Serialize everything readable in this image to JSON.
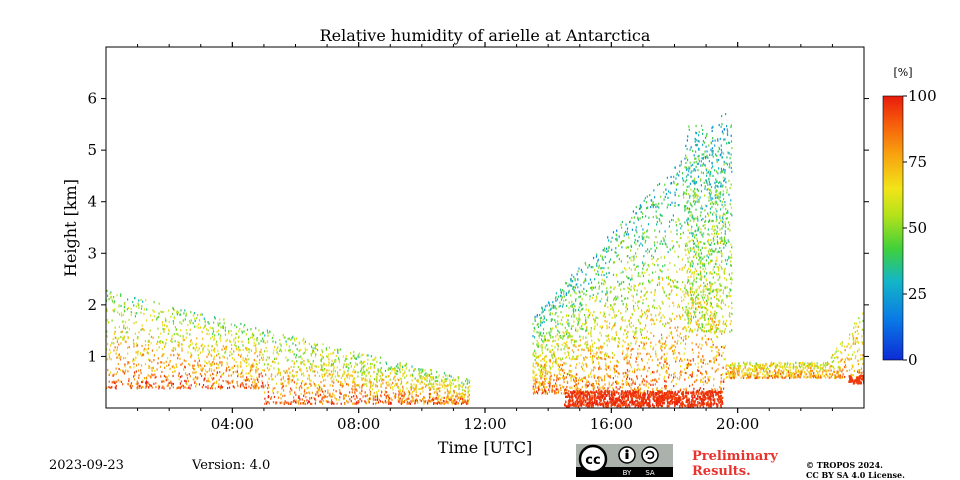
{
  "chart_data": {
    "type": "heatmap",
    "title": "Relative humidity of arielle at Antarctica",
    "xlabel": "Time [UTC]",
    "ylabel": "Height [km]",
    "x_ticks": [
      "04:00",
      "08:00",
      "12:00",
      "16:00",
      "20:00"
    ],
    "x_range_hours": [
      0,
      24
    ],
    "y_ticks": [
      "1",
      "2",
      "3",
      "4",
      "5",
      "6"
    ],
    "y_range_km": [
      0,
      7
    ],
    "colorbar": {
      "unit": "[%]",
      "range": [
        0,
        100
      ],
      "ticks": [
        "0",
        "25",
        "50",
        "75",
        "100"
      ],
      "colormap": "jet"
    },
    "regions": [
      {
        "desc": "overnight boundary-layer returns",
        "t_start": 0.0,
        "t_end": 11.5,
        "h_top_start": 2.3,
        "h_top_end": 0.6,
        "rh": "40-100"
      },
      {
        "desc": "afternoon convective returns",
        "t_start": 13.5,
        "t_end": 19.6,
        "h_top_start": 1.8,
        "h_top_end": 5.8,
        "rh": "30-100"
      },
      {
        "desc": "saturated near-surface layer",
        "t_start": 14.5,
        "t_end": 19.5,
        "h_top": 0.4,
        "rh": "90-100"
      },
      {
        "desc": "evening shallow layer",
        "t_start": 19.5,
        "t_end": 24.0,
        "h_top": 2.0,
        "rh": "60-100"
      }
    ]
  },
  "footer": {
    "date": "2023-09-23",
    "version": "Version: 4.0",
    "preliminary_line1": "Preliminary",
    "preliminary_line2": "Results.",
    "copyright_line1": "© TROPOS 2024.",
    "copyright_line2": "CC BY SA 4.0 License.",
    "cc_label": "cc",
    "by_label": "BY",
    "sa_label": "SA"
  }
}
